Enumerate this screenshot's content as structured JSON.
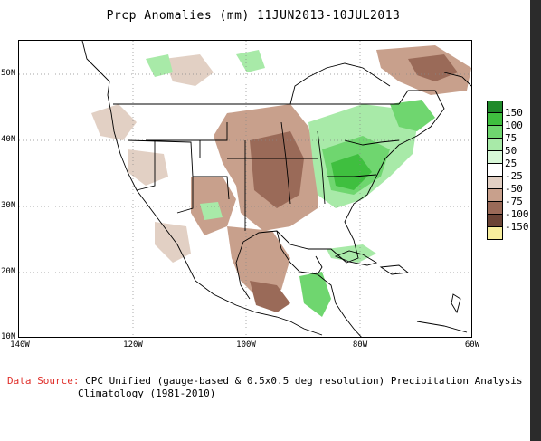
{
  "title": "Prcp Anomalies (mm) 11JUN2013-10JUL2013",
  "lat_labels": [
    "50N",
    "40N",
    "30N",
    "20N",
    "10N"
  ],
  "lon_labels": [
    "140W",
    "120W",
    "100W",
    "80W",
    "60W"
  ],
  "colorbar": {
    "labels": [
      "150",
      "100",
      "75",
      "50",
      "25",
      "-25",
      "-50",
      "-75",
      "-100",
      "-150"
    ],
    "colors": [
      "#1f8a2a",
      "#3fbf3f",
      "#6fd66f",
      "#a8eaa8",
      "#d7f7d7",
      "#ffffff",
      "#e2d0c4",
      "#c8a08c",
      "#9a6a58",
      "#6b4436",
      "#f7ee9e"
    ]
  },
  "footer": {
    "source_label": "Data Source:",
    "source_text": "CPC Unified (gauge-based & 0.5x0.5 deg resolution) Precipitation Analysis",
    "climatology": "Climatology (1981-2010)"
  }
}
